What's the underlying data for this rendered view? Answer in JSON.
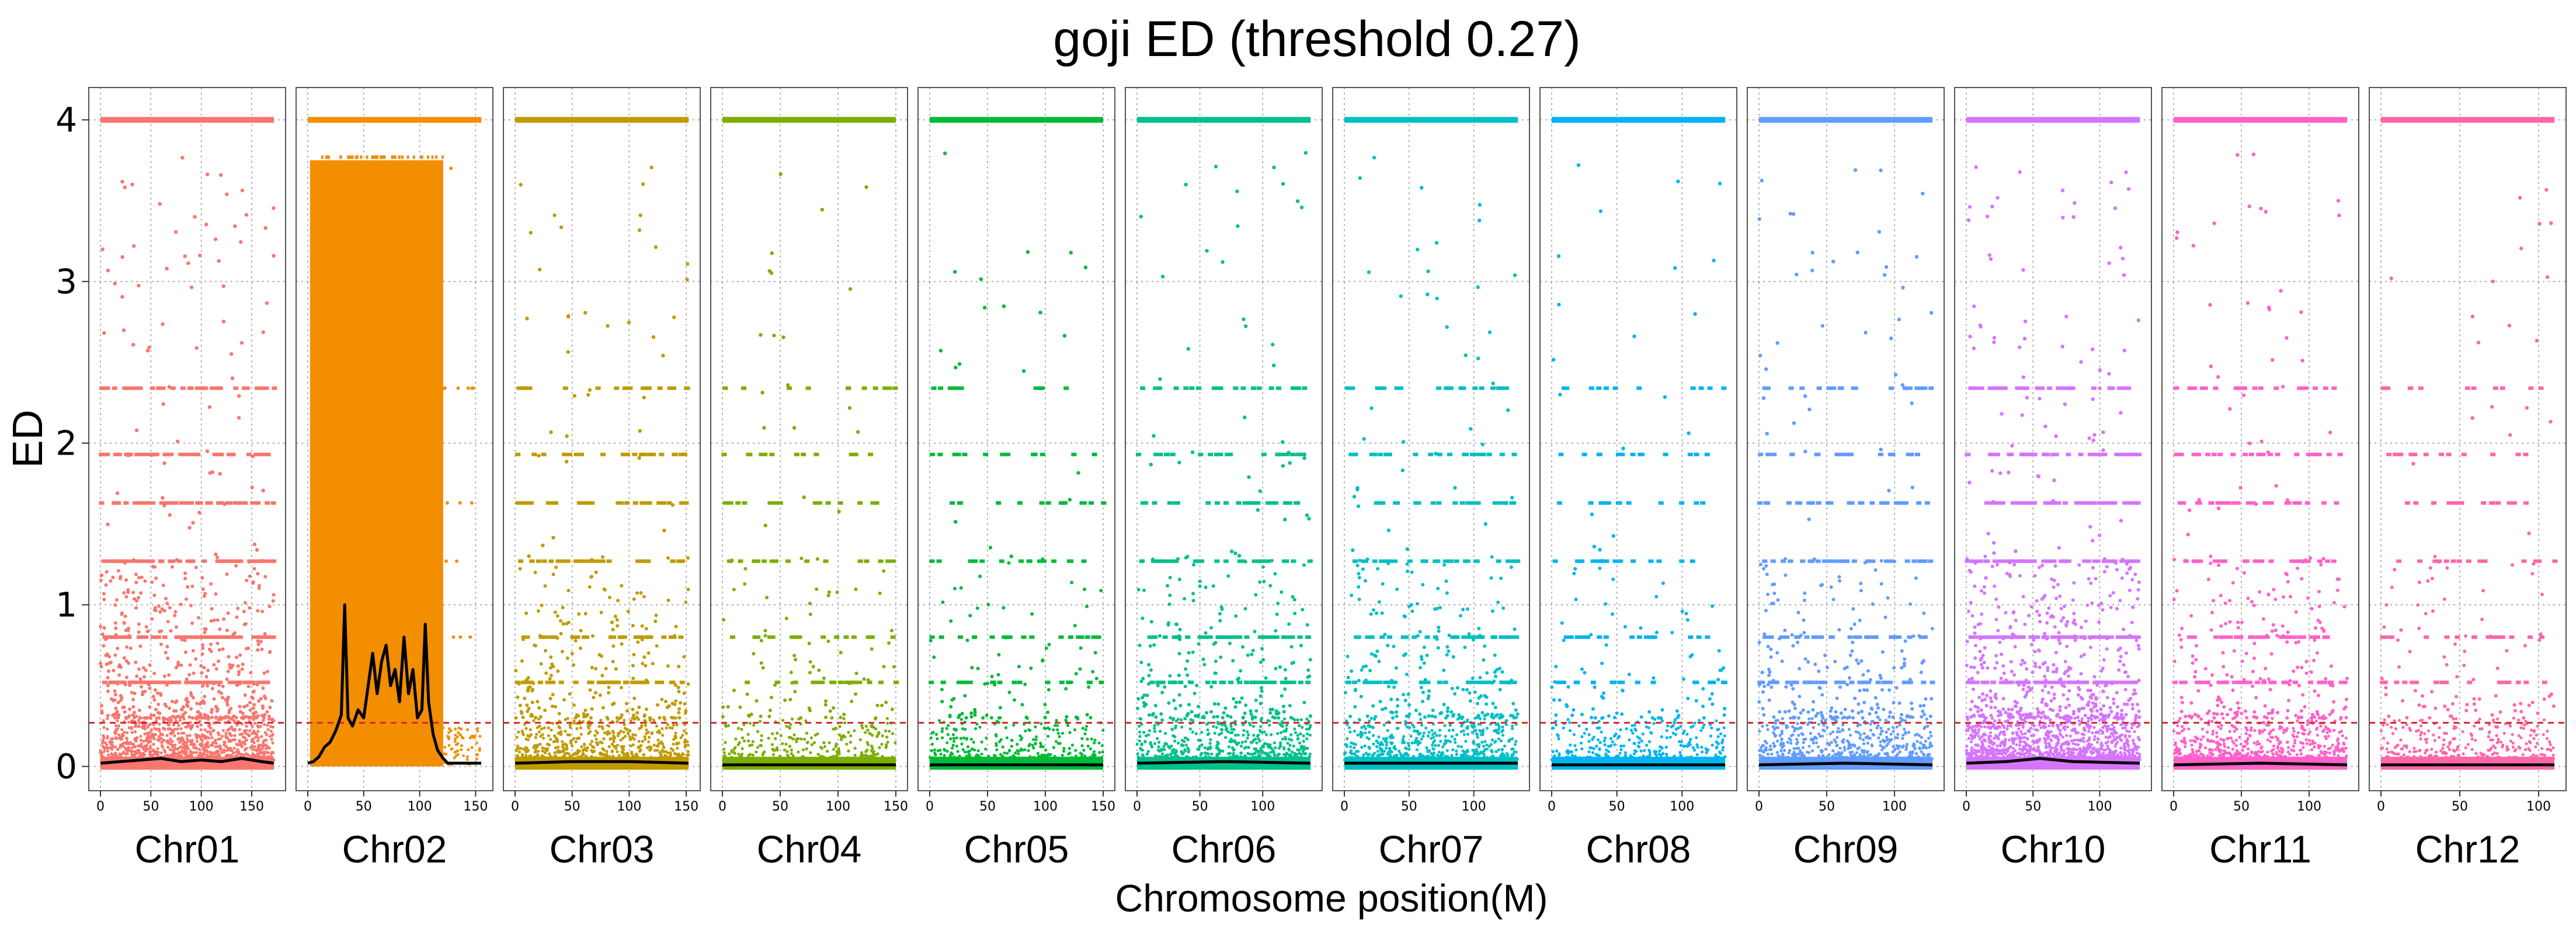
{
  "chart_data": {
    "type": "scatter",
    "title": "goji ED (threshold 0.27)",
    "xlabel": "Chromosome position(M)",
    "ylabel": "ED",
    "threshold": 0.27,
    "threshold_color": "#d62728",
    "smooth_line_color": "#000000",
    "ylim": [
      -0.15,
      4.2
    ],
    "yticks": [
      0,
      1,
      2,
      3,
      4
    ],
    "grid": true,
    "panels": [
      {
        "name": "Chr01",
        "color": "#F8766D",
        "length": 172,
        "xticks": [
          0,
          50,
          100,
          150
        ],
        "pattern": "dense",
        "smooth": [
          [
            0,
            0.02
          ],
          [
            20,
            0.03
          ],
          [
            40,
            0.04
          ],
          [
            60,
            0.05
          ],
          [
            80,
            0.03
          ],
          [
            100,
            0.04
          ],
          [
            120,
            0.03
          ],
          [
            140,
            0.05
          ],
          [
            160,
            0.03
          ],
          [
            172,
            0.02
          ]
        ]
      },
      {
        "name": "Chr02",
        "color": "#F28E00",
        "length": 155,
        "xticks": [
          0,
          50,
          100,
          150
        ],
        "pattern": "block",
        "block_range": [
          2,
          121
        ],
        "block_max": 3.75,
        "smooth": [
          [
            0,
            0.02
          ],
          [
            5,
            0.03
          ],
          [
            10,
            0.06
          ],
          [
            15,
            0.12
          ],
          [
            20,
            0.15
          ],
          [
            25,
            0.22
          ],
          [
            30,
            0.32
          ],
          [
            33,
            1.0
          ],
          [
            36,
            0.3
          ],
          [
            40,
            0.25
          ],
          [
            45,
            0.35
          ],
          [
            50,
            0.3
          ],
          [
            55,
            0.55
          ],
          [
            58,
            0.7
          ],
          [
            62,
            0.45
          ],
          [
            66,
            0.65
          ],
          [
            70,
            0.75
          ],
          [
            74,
            0.5
          ],
          [
            78,
            0.6
          ],
          [
            82,
            0.4
          ],
          [
            86,
            0.8
          ],
          [
            90,
            0.45
          ],
          [
            94,
            0.6
          ],
          [
            98,
            0.3
          ],
          [
            102,
            0.35
          ],
          [
            105,
            0.88
          ],
          [
            108,
            0.4
          ],
          [
            112,
            0.2
          ],
          [
            116,
            0.1
          ],
          [
            121,
            0.05
          ],
          [
            125,
            0.02
          ],
          [
            155,
            0.02
          ]
        ]
      },
      {
        "name": "Chr03",
        "color": "#C09B00",
        "length": 152,
        "xticks": [
          0,
          50,
          100,
          150
        ],
        "pattern": "medium",
        "smooth": [
          [
            0,
            0.02
          ],
          [
            50,
            0.03
          ],
          [
            100,
            0.03
          ],
          [
            152,
            0.02
          ]
        ]
      },
      {
        "name": "Chr04",
        "color": "#7CAE00",
        "length": 150,
        "xticks": [
          0,
          50,
          100,
          150
        ],
        "pattern": "sparse",
        "smooth": [
          [
            0,
            0.01
          ],
          [
            75,
            0.01
          ],
          [
            150,
            0.01
          ]
        ]
      },
      {
        "name": "Chr05",
        "color": "#00BA38",
        "length": 150,
        "xticks": [
          0,
          50,
          100,
          150
        ],
        "pattern": "sparse",
        "smooth": [
          [
            0,
            0.01
          ],
          [
            75,
            0.01
          ],
          [
            150,
            0.01
          ]
        ]
      },
      {
        "name": "Chr06",
        "color": "#00C08B",
        "length": 138,
        "xticks": [
          0,
          50,
          100
        ],
        "pattern": "medium",
        "smooth": [
          [
            0,
            0.02
          ],
          [
            70,
            0.03
          ],
          [
            138,
            0.02
          ]
        ]
      },
      {
        "name": "Chr07",
        "color": "#00BFC4",
        "length": 134,
        "xticks": [
          0,
          50,
          100
        ],
        "pattern": "medium",
        "smooth": [
          [
            0,
            0.02
          ],
          [
            67,
            0.02
          ],
          [
            134,
            0.02
          ]
        ]
      },
      {
        "name": "Chr08",
        "color": "#00B4F0",
        "length": 133,
        "xticks": [
          0,
          50,
          100
        ],
        "pattern": "sparse",
        "smooth": [
          [
            0,
            0.01
          ],
          [
            66,
            0.01
          ],
          [
            133,
            0.01
          ]
        ]
      },
      {
        "name": "Chr09",
        "color": "#619CFF",
        "length": 128,
        "xticks": [
          0,
          50,
          100
        ],
        "pattern": "medium",
        "smooth": [
          [
            0,
            0.01
          ],
          [
            64,
            0.02
          ],
          [
            128,
            0.01
          ]
        ]
      },
      {
        "name": "Chr10",
        "color": "#D575FE",
        "length": 130,
        "xticks": [
          0,
          50,
          100
        ],
        "pattern": "dense",
        "smooth": [
          [
            0,
            0.02
          ],
          [
            30,
            0.03
          ],
          [
            55,
            0.05
          ],
          [
            80,
            0.03
          ],
          [
            130,
            0.02
          ]
        ]
      },
      {
        "name": "Chr11",
        "color": "#FF61C9",
        "length": 128,
        "xticks": [
          0,
          50,
          100
        ],
        "pattern": "medium",
        "smooth": [
          [
            0,
            0.01
          ],
          [
            64,
            0.02
          ],
          [
            128,
            0.01
          ]
        ]
      },
      {
        "name": "Chr12",
        "color": "#FF66A8",
        "length": 110,
        "xticks": [
          0,
          50,
          100
        ],
        "pattern": "sparse",
        "smooth": [
          [
            0,
            0.01
          ],
          [
            55,
            0.01
          ],
          [
            110,
            0.01
          ]
        ]
      }
    ]
  }
}
